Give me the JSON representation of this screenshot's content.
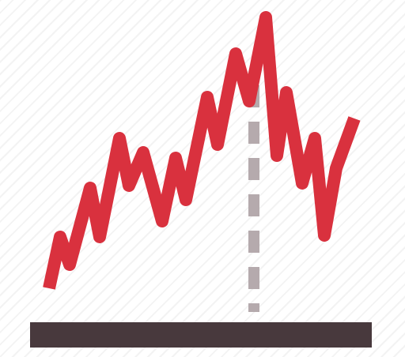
{
  "icon": {
    "name": "stock-chart-icon",
    "colors": {
      "trend_line": "#d9313e",
      "marker_line": "#b5aaad",
      "baseline": "#48393d"
    }
  }
}
